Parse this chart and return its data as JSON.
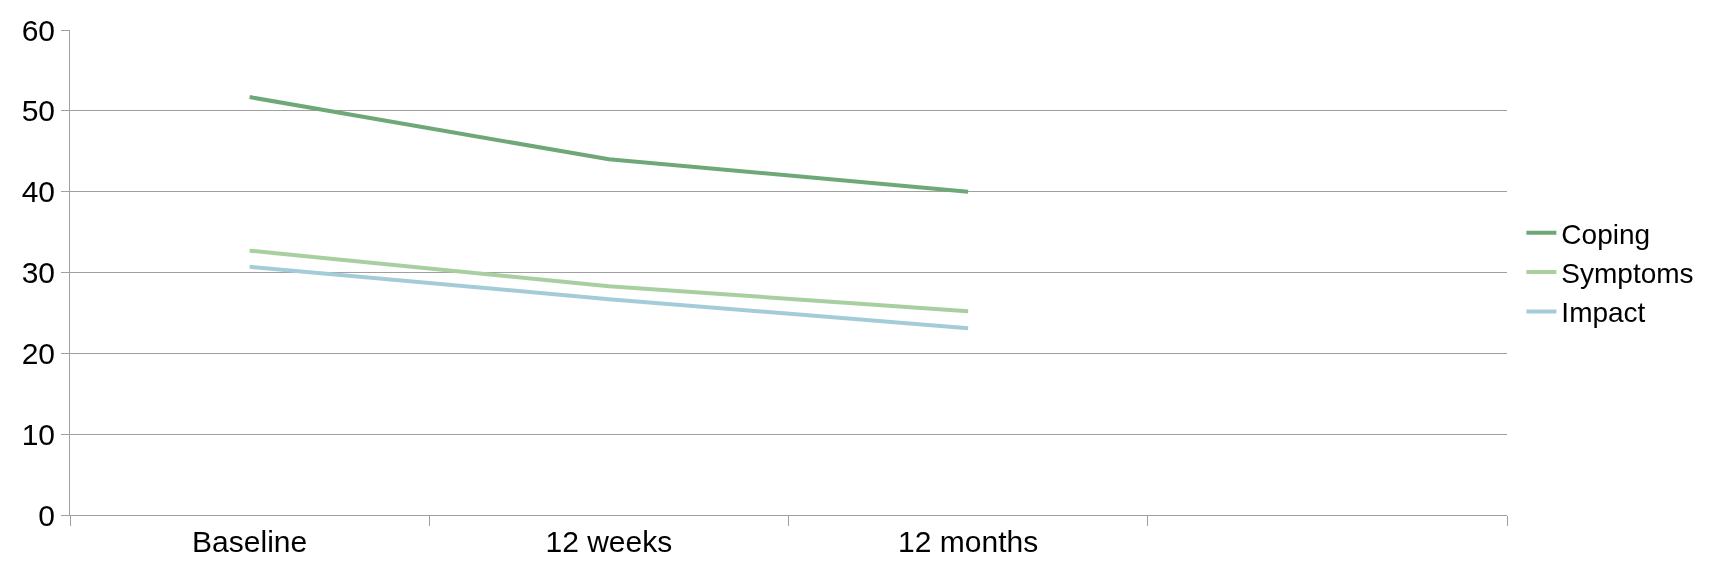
{
  "chart_data": {
    "type": "line",
    "categories": [
      "Baseline",
      "12 weeks",
      "12 months",
      null
    ],
    "series": [
      {
        "name": "Coping",
        "color": "#6fa878",
        "values": [
          51.7,
          44,
          40,
          null
        ]
      },
      {
        "name": "Symptoms",
        "color": "#a8cf9f",
        "values": [
          32.7,
          28.3,
          25.2,
          null
        ]
      },
      {
        "name": "Impact",
        "color": "#a4ccd8",
        "values": [
          30.7,
          26.7,
          23.1,
          null
        ]
      }
    ],
    "ylim": [
      0,
      60
    ],
    "yticks": [
      0,
      10,
      20,
      30,
      40,
      50,
      60
    ],
    "grid": "y",
    "legend": "right",
    "marker": "none",
    "line_style": "solid"
  }
}
